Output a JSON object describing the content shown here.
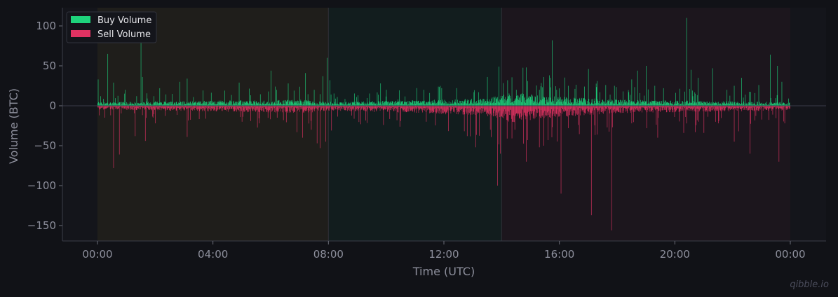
{
  "chart_data": {
    "type": "bar",
    "title": "",
    "xlabel": "Time (UTC)",
    "ylabel": "Volume (BTC)",
    "xlim_hours": [
      -2.4,
      24.5
    ],
    "ylim": [
      -170,
      123
    ],
    "x_ticks": [
      "00:00",
      "04:00",
      "08:00",
      "12:00",
      "16:00",
      "20:00",
      "00:00"
    ],
    "y_ticks": [
      100,
      50,
      0,
      -50,
      -100,
      -150
    ],
    "y_tick_labels": [
      "100",
      "50",
      "0",
      "−50",
      "−100",
      "−150"
    ],
    "grid": false,
    "legend_position": "top-left",
    "bar_interval_minutes": 1,
    "sessions": [
      {
        "start_hour": 0,
        "end_hour": 8,
        "color": "#1f1e1b"
      },
      {
        "start_hour": 8,
        "end_hour": 14,
        "color": "#121d1e"
      },
      {
        "start_hour": 14,
        "end_hour": 24,
        "color": "#1c161d"
      }
    ],
    "series": [
      {
        "name": "Buy Volume",
        "color": "#1ed37c",
        "baseline_levels": [
          [
            0,
            3
          ],
          [
            7.0,
            5
          ],
          [
            8.2,
            3
          ],
          [
            13.4,
            6
          ],
          [
            14.4,
            11
          ],
          [
            15.5,
            8
          ],
          [
            18,
            5
          ],
          [
            21,
            4
          ],
          [
            24,
            3
          ]
        ],
        "spikes": [
          [
            0.02,
            33
          ],
          [
            0.1,
            12
          ],
          [
            0.35,
            65
          ],
          [
            0.55,
            29
          ],
          [
            0.95,
            20
          ],
          [
            1.5,
            80
          ],
          [
            1.55,
            36
          ],
          [
            2.15,
            22
          ],
          [
            2.85,
            30
          ],
          [
            3.1,
            34
          ],
          [
            4.4,
            19
          ],
          [
            4.9,
            29
          ],
          [
            6.0,
            44
          ],
          [
            6.2,
            20
          ],
          [
            6.6,
            28
          ],
          [
            6.8,
            19
          ],
          [
            7.2,
            41
          ],
          [
            7.5,
            20
          ],
          [
            7.8,
            37
          ],
          [
            7.95,
            60
          ],
          [
            8.05,
            32
          ],
          [
            8.3,
            11
          ],
          [
            9.8,
            28
          ],
          [
            10.0,
            20
          ],
          [
            10.4,
            8
          ],
          [
            11.3,
            20
          ],
          [
            11.5,
            16
          ],
          [
            11.8,
            24
          ],
          [
            13.2,
            17
          ],
          [
            13.5,
            36
          ],
          [
            13.9,
            49
          ],
          [
            14.2,
            32
          ],
          [
            14.5,
            20
          ],
          [
            14.85,
            48
          ],
          [
            14.9,
            31
          ],
          [
            15.3,
            20
          ],
          [
            15.45,
            36
          ],
          [
            15.75,
            82
          ],
          [
            15.9,
            20
          ],
          [
            16.3,
            25
          ],
          [
            17.0,
            46
          ],
          [
            17.3,
            31
          ],
          [
            17.6,
            26
          ],
          [
            17.9,
            25
          ],
          [
            18.2,
            18
          ],
          [
            18.5,
            33
          ],
          [
            18.7,
            44
          ],
          [
            19.0,
            50
          ],
          [
            19.3,
            25
          ],
          [
            19.6,
            22
          ],
          [
            20.4,
            110
          ],
          [
            20.55,
            45
          ],
          [
            20.8,
            35
          ],
          [
            21.3,
            47
          ],
          [
            21.8,
            20
          ],
          [
            22.05,
            25
          ],
          [
            22.3,
            35
          ],
          [
            22.9,
            26
          ],
          [
            23.3,
            64
          ],
          [
            23.55,
            50
          ],
          [
            23.7,
            30
          ]
        ]
      },
      {
        "name": "Sell Volume",
        "color": "#e03262",
        "baseline_levels": [
          [
            0,
            -3
          ],
          [
            7.0,
            -6
          ],
          [
            8.2,
            -4
          ],
          [
            13.4,
            -8
          ],
          [
            14.4,
            -14
          ],
          [
            15.5,
            -10
          ],
          [
            18,
            -6
          ],
          [
            21,
            -5
          ],
          [
            24,
            -4
          ]
        ],
        "spikes": [
          [
            0.05,
            -12
          ],
          [
            0.55,
            -78
          ],
          [
            0.75,
            -61
          ],
          [
            1.3,
            -38
          ],
          [
            1.65,
            -44
          ],
          [
            2.0,
            -22
          ],
          [
            3.1,
            -39
          ],
          [
            5.0,
            -20
          ],
          [
            5.6,
            -22
          ],
          [
            6.9,
            -33
          ],
          [
            7.1,
            -40
          ],
          [
            7.4,
            -30
          ],
          [
            7.6,
            -47
          ],
          [
            7.7,
            -53
          ],
          [
            7.9,
            -45
          ],
          [
            8.1,
            -31
          ],
          [
            9.9,
            -24
          ],
          [
            10.5,
            -19
          ],
          [
            12.8,
            -38
          ],
          [
            13.1,
            -52
          ],
          [
            13.6,
            -30
          ],
          [
            13.85,
            -100
          ],
          [
            13.95,
            -60
          ],
          [
            14.45,
            -30
          ],
          [
            14.85,
            -70
          ],
          [
            14.9,
            -43
          ],
          [
            15.3,
            -52
          ],
          [
            15.45,
            -50
          ],
          [
            15.6,
            -43
          ],
          [
            16.05,
            -110
          ],
          [
            16.3,
            -28
          ],
          [
            16.65,
            -24
          ],
          [
            17.1,
            -137
          ],
          [
            17.3,
            -36
          ],
          [
            17.8,
            -156
          ],
          [
            18.5,
            -22
          ],
          [
            19.4,
            -40
          ],
          [
            20.3,
            -34
          ],
          [
            20.7,
            -33
          ],
          [
            21.0,
            -34
          ],
          [
            21.5,
            -22
          ],
          [
            22.05,
            -45
          ],
          [
            22.2,
            -32
          ],
          [
            22.6,
            -60
          ],
          [
            23.6,
            -70
          ],
          [
            23.8,
            -22
          ]
        ]
      }
    ]
  },
  "watermark": "qibble.io"
}
